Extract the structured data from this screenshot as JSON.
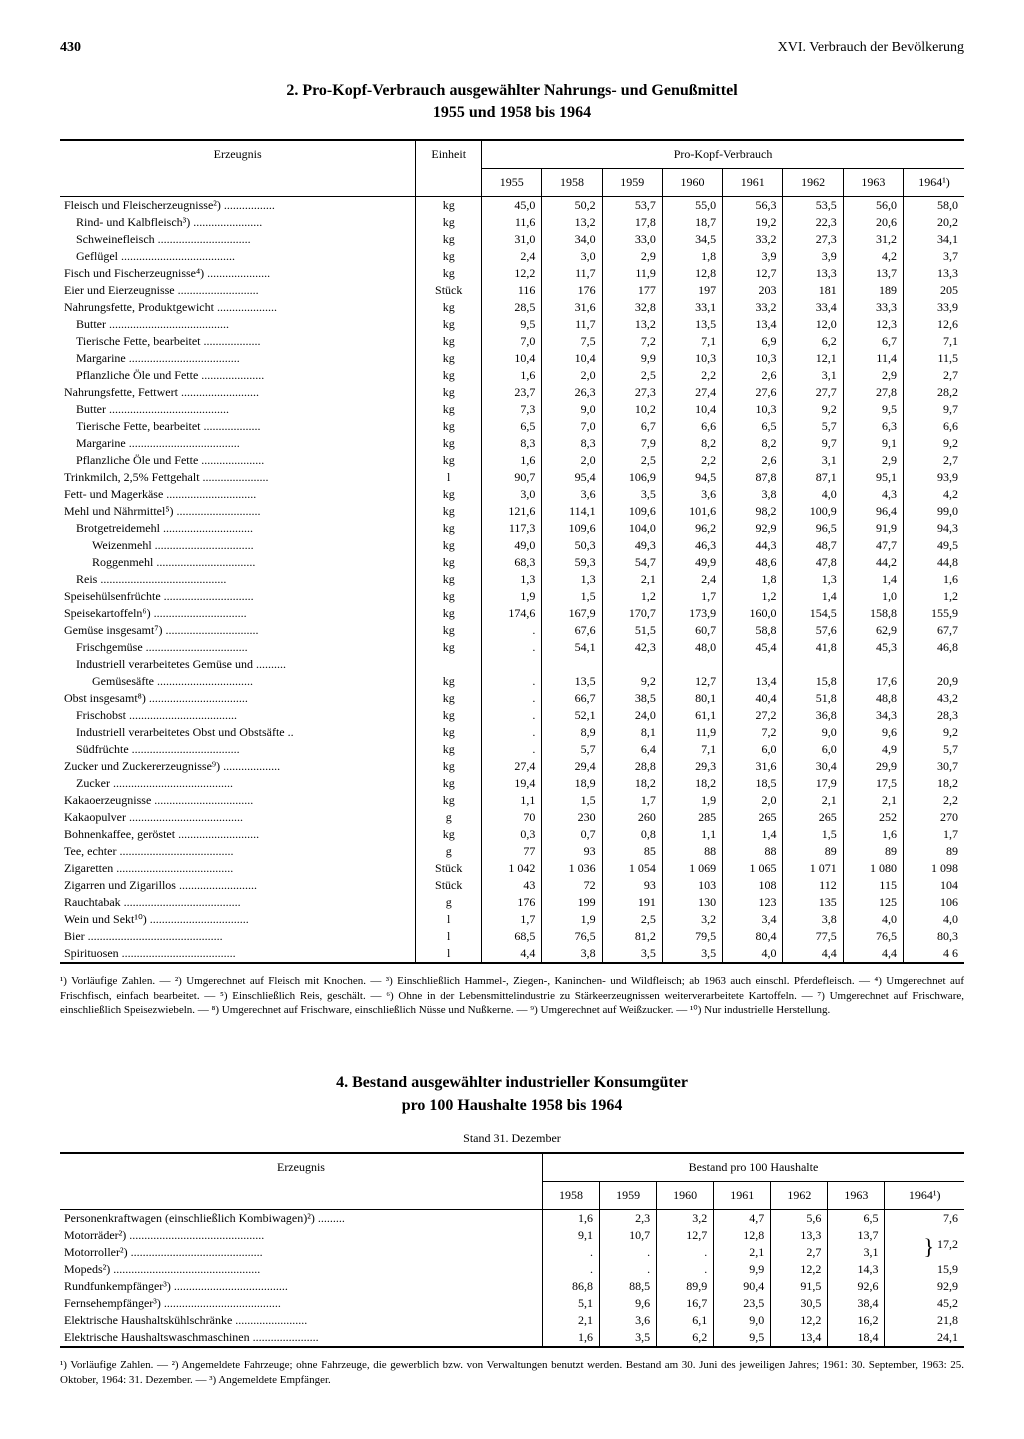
{
  "header": {
    "page_number": "430",
    "chapter": "XVI. Verbrauch der Bevölkerung"
  },
  "table1": {
    "title_line1": "2. Pro-Kopf-Verbrauch ausgewählter Nahrungs- und Genußmittel",
    "title_line2": "1955 und 1958 bis 1964",
    "col_product": "Erzeugnis",
    "col_unit": "Einheit",
    "col_group": "Pro-Kopf-Verbrauch",
    "years": [
      "1955",
      "1958",
      "1959",
      "1960",
      "1961",
      "1962",
      "1963",
      "1964¹)"
    ],
    "rows": [
      {
        "label": "Fleisch und Fleischerzeugnisse²)",
        "unit": "kg",
        "indent": 0,
        "vals": [
          "45,0",
          "50,2",
          "53,7",
          "55,0",
          "56,3",
          "53,5",
          "56,0",
          "58,0"
        ]
      },
      {
        "label": "Rind- und Kalbfleisch³)",
        "unit": "kg",
        "indent": 1,
        "vals": [
          "11,6",
          "13,2",
          "17,8",
          "18,7",
          "19,2",
          "22,3",
          "20,6",
          "20,2"
        ]
      },
      {
        "label": "Schweinefleisch",
        "unit": "kg",
        "indent": 1,
        "vals": [
          "31,0",
          "34,0",
          "33,0",
          "34,5",
          "33,2",
          "27,3",
          "31,2",
          "34,1"
        ]
      },
      {
        "label": "Geflügel",
        "unit": "kg",
        "indent": 1,
        "vals": [
          "2,4",
          "3,0",
          "2,9",
          "1,8",
          "3,9",
          "3,9",
          "4,2",
          "3,7"
        ]
      },
      {
        "label": "Fisch und Fischerzeugnisse⁴)",
        "unit": "kg",
        "indent": 0,
        "vals": [
          "12,2",
          "11,7",
          "11,9",
          "12,8",
          "12,7",
          "13,3",
          "13,7",
          "13,3"
        ]
      },
      {
        "label": "Eier und Eierzeugnisse",
        "unit": "Stück",
        "indent": 0,
        "vals": [
          "116",
          "176",
          "177",
          "197",
          "203",
          "181",
          "189",
          "205"
        ]
      },
      {
        "label": "Nahrungsfette, Produktgewicht",
        "unit": "kg",
        "indent": 0,
        "vals": [
          "28,5",
          "31,6",
          "32,8",
          "33,1",
          "33,2",
          "33,4",
          "33,3",
          "33,9"
        ]
      },
      {
        "label": "Butter",
        "unit": "kg",
        "indent": 1,
        "vals": [
          "9,5",
          "11,7",
          "13,2",
          "13,5",
          "13,4",
          "12,0",
          "12,3",
          "12,6"
        ]
      },
      {
        "label": "Tierische Fette, bearbeitet",
        "unit": "kg",
        "indent": 1,
        "vals": [
          "7,0",
          "7,5",
          "7,2",
          "7,1",
          "6,9",
          "6,2",
          "6,7",
          "7,1"
        ]
      },
      {
        "label": "Margarine",
        "unit": "kg",
        "indent": 1,
        "vals": [
          "10,4",
          "10,4",
          "9,9",
          "10,3",
          "10,3",
          "12,1",
          "11,4",
          "11,5"
        ]
      },
      {
        "label": "Pflanzliche Öle und Fette",
        "unit": "kg",
        "indent": 1,
        "vals": [
          "1,6",
          "2,0",
          "2,5",
          "2,2",
          "2,6",
          "3,1",
          "2,9",
          "2,7"
        ]
      },
      {
        "label": "Nahrungsfette, Fettwert",
        "unit": "kg",
        "indent": 0,
        "vals": [
          "23,7",
          "26,3",
          "27,3",
          "27,4",
          "27,6",
          "27,7",
          "27,8",
          "28,2"
        ]
      },
      {
        "label": "Butter",
        "unit": "kg",
        "indent": 1,
        "vals": [
          "7,3",
          "9,0",
          "10,2",
          "10,4",
          "10,3",
          "9,2",
          "9,5",
          "9,7"
        ]
      },
      {
        "label": "Tierische Fette, bearbeitet",
        "unit": "kg",
        "indent": 1,
        "vals": [
          "6,5",
          "7,0",
          "6,7",
          "6,6",
          "6,5",
          "5,7",
          "6,3",
          "6,6"
        ]
      },
      {
        "label": "Margarine",
        "unit": "kg",
        "indent": 1,
        "vals": [
          "8,3",
          "8,3",
          "7,9",
          "8,2",
          "8,2",
          "9,7",
          "9,1",
          "9,2"
        ]
      },
      {
        "label": "Pflanzliche Öle und Fette",
        "unit": "kg",
        "indent": 1,
        "vals": [
          "1,6",
          "2,0",
          "2,5",
          "2,2",
          "2,6",
          "3,1",
          "2,9",
          "2,7"
        ]
      },
      {
        "label": "Trinkmilch, 2,5% Fettgehalt",
        "unit": "l",
        "indent": 0,
        "vals": [
          "90,7",
          "95,4",
          "106,9",
          "94,5",
          "87,8",
          "87,1",
          "95,1",
          "93,9"
        ]
      },
      {
        "label": "Fett- und Magerkäse",
        "unit": "kg",
        "indent": 0,
        "vals": [
          "3,0",
          "3,6",
          "3,5",
          "3,6",
          "3,8",
          "4,0",
          "4,3",
          "4,2"
        ]
      },
      {
        "label": "Mehl und Nährmittel⁵)",
        "unit": "kg",
        "indent": 0,
        "vals": [
          "121,6",
          "114,1",
          "109,6",
          "101,6",
          "98,2",
          "100,9",
          "96,4",
          "99,0"
        ]
      },
      {
        "label": "Brotgetreidemehl",
        "unit": "kg",
        "indent": 1,
        "vals": [
          "117,3",
          "109,6",
          "104,0",
          "96,2",
          "92,9",
          "96,5",
          "91,9",
          "94,3"
        ]
      },
      {
        "label": "Weizenmehl",
        "unit": "kg",
        "indent": 2,
        "vals": [
          "49,0",
          "50,3",
          "49,3",
          "46,3",
          "44,3",
          "48,7",
          "47,7",
          "49,5"
        ]
      },
      {
        "label": "Roggenmehl",
        "unit": "kg",
        "indent": 2,
        "vals": [
          "68,3",
          "59,3",
          "54,7",
          "49,9",
          "48,6",
          "47,8",
          "44,2",
          "44,8"
        ]
      },
      {
        "label": "Reis",
        "unit": "kg",
        "indent": 1,
        "vals": [
          "1,3",
          "1,3",
          "2,1",
          "2,4",
          "1,8",
          "1,3",
          "1,4",
          "1,6"
        ]
      },
      {
        "label": "Speisehülsenfrüchte",
        "unit": "kg",
        "indent": 0,
        "vals": [
          "1,9",
          "1,5",
          "1,2",
          "1,7",
          "1,2",
          "1,4",
          "1,0",
          "1,2"
        ]
      },
      {
        "label": "Speisekartoffeln⁶)",
        "unit": "kg",
        "indent": 0,
        "vals": [
          "174,6",
          "167,9",
          "170,7",
          "173,9",
          "160,0",
          "154,5",
          "158,8",
          "155,9"
        ]
      },
      {
        "label": "Gemüse insgesamt⁷)",
        "unit": "kg",
        "indent": 0,
        "vals": [
          ".",
          "67,6",
          "51,5",
          "60,7",
          "58,8",
          "57,6",
          "62,9",
          "67,7"
        ]
      },
      {
        "label": "Frischgemüse",
        "unit": "kg",
        "indent": 1,
        "vals": [
          ".",
          "54,1",
          "42,3",
          "48,0",
          "45,4",
          "41,8",
          "45,3",
          "46,8"
        ]
      },
      {
        "label": "Industriell verarbeitetes Gemüse und",
        "unit": "",
        "indent": 1,
        "vals": [
          "",
          "",
          "",
          "",
          "",
          "",
          "",
          ""
        ]
      },
      {
        "label": "Gemüsesäfte",
        "unit": "kg",
        "indent": 2,
        "vals": [
          ".",
          "13,5",
          "9,2",
          "12,7",
          "13,4",
          "15,8",
          "17,6",
          "20,9"
        ]
      },
      {
        "label": "Obst insgesamt⁸)",
        "unit": "kg",
        "indent": 0,
        "vals": [
          ".",
          "66,7",
          "38,5",
          "80,1",
          "40,4",
          "51,8",
          "48,8",
          "43,2"
        ]
      },
      {
        "label": "Frischobst",
        "unit": "kg",
        "indent": 1,
        "vals": [
          ".",
          "52,1",
          "24,0",
          "61,1",
          "27,2",
          "36,8",
          "34,3",
          "28,3"
        ]
      },
      {
        "label": "Industriell verarbeitetes Obst und Obstsäfte",
        "unit": "kg",
        "indent": 1,
        "vals": [
          ".",
          "8,9",
          "8,1",
          "11,9",
          "7,2",
          "9,0",
          "9,6",
          "9,2"
        ]
      },
      {
        "label": "Südfrüchte",
        "unit": "kg",
        "indent": 1,
        "vals": [
          ".",
          "5,7",
          "6,4",
          "7,1",
          "6,0",
          "6,0",
          "4,9",
          "5,7"
        ]
      },
      {
        "label": "Zucker und Zuckererzeugnisse⁹)",
        "unit": "kg",
        "indent": 0,
        "vals": [
          "27,4",
          "29,4",
          "28,8",
          "29,3",
          "31,6",
          "30,4",
          "29,9",
          "30,7"
        ]
      },
      {
        "label": "Zucker",
        "unit": "kg",
        "indent": 1,
        "vals": [
          "19,4",
          "18,9",
          "18,2",
          "18,2",
          "18,5",
          "17,9",
          "17,5",
          "18,2"
        ]
      },
      {
        "label": "Kakaoerzeugnisse",
        "unit": "kg",
        "indent": 0,
        "vals": [
          "1,1",
          "1,5",
          "1,7",
          "1,9",
          "2,0",
          "2,1",
          "2,1",
          "2,2"
        ]
      },
      {
        "label": "Kakaopulver",
        "unit": "g",
        "indent": 0,
        "vals": [
          "70",
          "230",
          "260",
          "285",
          "265",
          "265",
          "252",
          "270"
        ]
      },
      {
        "label": "Bohnenkaffee, geröstet",
        "unit": "kg",
        "indent": 0,
        "vals": [
          "0,3",
          "0,7",
          "0,8",
          "1,1",
          "1,4",
          "1,5",
          "1,6",
          "1,7"
        ]
      },
      {
        "label": "Tee, echter",
        "unit": "g",
        "indent": 0,
        "vals": [
          "77",
          "93",
          "85",
          "88",
          "88",
          "89",
          "89",
          "89"
        ]
      },
      {
        "label": "Zigaretten",
        "unit": "Stück",
        "indent": 0,
        "vals": [
          "1 042",
          "1 036",
          "1 054",
          "1 069",
          "1 065",
          "1 071",
          "1 080",
          "1 098"
        ]
      },
      {
        "label": "Zigarren und Zigarillos",
        "unit": "Stück",
        "indent": 0,
        "vals": [
          "43",
          "72",
          "93",
          "103",
          "108",
          "112",
          "115",
          "104"
        ]
      },
      {
        "label": "Rauchtabak",
        "unit": "g",
        "indent": 0,
        "vals": [
          "176",
          "199",
          "191",
          "130",
          "123",
          "135",
          "125",
          "106"
        ]
      },
      {
        "label": "Wein und Sekt¹⁰)",
        "unit": "l",
        "indent": 0,
        "vals": [
          "1,7",
          "1,9",
          "2,5",
          "3,2",
          "3,4",
          "3,8",
          "4,0",
          "4,0"
        ]
      },
      {
        "label": "Bier",
        "unit": "l",
        "indent": 0,
        "vals": [
          "68,5",
          "76,5",
          "81,2",
          "79,5",
          "80,4",
          "77,5",
          "76,5",
          "80,3"
        ]
      },
      {
        "label": "Spirituosen",
        "unit": "l",
        "indent": 0,
        "vals": [
          "4,4",
          "3,8",
          "3,5",
          "3,5",
          "4,0",
          "4,4",
          "4,4",
          "4 6"
        ]
      }
    ],
    "footnotes": "¹) Vorläufige Zahlen. — ²) Umgerechnet auf Fleisch mit Knochen. — ³) Einschließlich Hammel-, Ziegen-, Kaninchen- und Wildfleisch; ab 1963 auch einschl. Pferdefleisch. — ⁴) Umgerechnet auf Frischfisch, einfach bearbeitet. — ⁵) Einschließlich Reis, geschält. — ⁶) Ohne in der Lebensmittelindustrie zu Stärkeerzeugnissen weiterverarbeitete Kartoffeln. — ⁷) Umgerechnet auf Frischware, einschließlich Speisezwiebeln. — ⁸) Umgerechnet auf Frischware, einschließlich Nüsse und Nußkerne. — ⁹) Umgerechnet auf Weißzucker. — ¹⁰) Nur industrielle Herstellung."
  },
  "table2": {
    "title_line1": "4. Bestand ausgewählter industrieller Konsumgüter",
    "title_line2": "pro 100 Haushalte 1958 bis 1964",
    "caption": "Stand 31. Dezember",
    "col_product": "Erzeugnis",
    "col_group": "Bestand pro 100 Haushalte",
    "years": [
      "1958",
      "1959",
      "1960",
      "1961",
      "1962",
      "1963",
      "1964¹)"
    ],
    "rows": [
      {
        "label": "Personenkraftwagen (einschließlich Kombiwagen)²)",
        "vals": [
          "1,6",
          "2,3",
          "3,2",
          "4,7",
          "5,6",
          "6,5",
          "7,6"
        ]
      },
      {
        "label": "Motorräder²)",
        "vals": [
          "9,1",
          "10,7",
          "12,7",
          "12,8",
          "13,3",
          "13,7",
          ""
        ]
      },
      {
        "label": "Motorroller²)",
        "vals": [
          ".",
          ".",
          ".",
          "2,1",
          "2,7",
          "3,1",
          ""
        ],
        "brace": "17,2"
      },
      {
        "label": "Mopeds²)",
        "vals": [
          ".",
          ".",
          ".",
          "9,9",
          "12,2",
          "14,3",
          "15,9"
        ]
      },
      {
        "label": "Rundfunkempfänger³)",
        "vals": [
          "86,8",
          "88,5",
          "89,9",
          "90,4",
          "91,5",
          "92,6",
          "92,9"
        ]
      },
      {
        "label": "Fernsehempfänger³)",
        "vals": [
          "5,1",
          "9,6",
          "16,7",
          "23,5",
          "30,5",
          "38,4",
          "45,2"
        ]
      },
      {
        "label": "Elektrische Haushaltskühlschränke",
        "vals": [
          "2,1",
          "3,6",
          "6,1",
          "9,0",
          "12,2",
          "16,2",
          "21,8"
        ]
      },
      {
        "label": "Elektrische Haushaltswaschmaschinen",
        "vals": [
          "1,6",
          "3,5",
          "6,2",
          "9,5",
          "13,4",
          "18,4",
          "24,1"
        ]
      }
    ],
    "footnotes": "¹) Vorläufige Zahlen. — ²) Angemeldete Fahrzeuge; ohne Fahrzeuge, die gewerblich bzw. von Verwaltungen benutzt werden. Bestand am 30. Juni des jeweiligen Jahres; 1961: 30. September, 1963: 25. Oktober, 1964: 31. Dezember. — ³) Angemeldete Empfänger."
  }
}
